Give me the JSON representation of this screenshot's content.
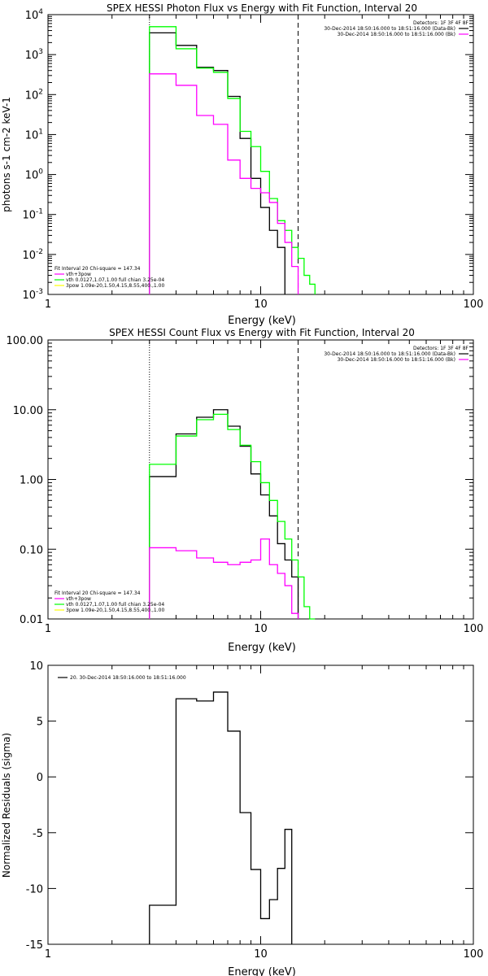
{
  "chart_data": [
    {
      "type": "line",
      "title": "SPEX HESSI Photon Flux vs Energy with Fit Function, Interval 20",
      "xlabel": "Energy (keV)",
      "ylabel": "photons s-1 cm-2 keV-1",
      "xscale": "log",
      "yscale": "log",
      "xlim": [
        1,
        100
      ],
      "ylim": [
        0.001,
        10000
      ],
      "xtick_labels": [
        "1",
        "10",
        "100"
      ],
      "ytick_labels": [
        "10-3",
        "10-2",
        "10-1",
        "100",
        "101",
        "102",
        "103",
        "104"
      ],
      "legend_top": {
        "header": "Detectors: 1F 3F 4F 8F",
        "entries": [
          {
            "label": "30-Dec-2014 18:50:16.000 to 18:51:16.000 (Data-Bk)",
            "color": "#000000"
          },
          {
            "label": "30-Dec-2014 18:50:16.000 to 18:51:16.000 (Bk)",
            "color": "#ff00ff"
          }
        ]
      },
      "legend_bottom": {
        "header": "Fit Interval 20   Chi-square = 147.34",
        "entries": [
          {
            "label": "vth+3pow",
            "color": "#ff00ff"
          },
          {
            "label": "vth 0.0127,1.07,1.00  full chian 3.25e-04",
            "color": "#00ff00"
          },
          {
            "label": "3pow 1.09e-20,1.50,4.15,8.55,400.,1.00",
            "color": "#ffff00"
          }
        ]
      },
      "fit_range_keV": [
        3,
        15
      ],
      "bin_edges": [
        3,
        4,
        5,
        6,
        7,
        8,
        9,
        10,
        11,
        12,
        13,
        14,
        15,
        16,
        17,
        18
      ],
      "series": [
        {
          "name": "Data-Bk",
          "color": "#000000",
          "values": [
            3500,
            1700,
            480,
            400,
            90,
            8,
            0.8,
            0.15,
            0.04,
            0.015,
            null,
            null,
            null,
            null,
            null
          ]
        },
        {
          "name": "vth+3pow",
          "color": "#00ff00",
          "values": [
            5000,
            1400,
            460,
            360,
            80,
            12,
            5,
            1.2,
            0.25,
            0.07,
            0.04,
            0.015,
            0.008,
            0.003,
            0.0018
          ]
        },
        {
          "name": "Bk",
          "color": "#ff00ff",
          "values": [
            330,
            170,
            30,
            18,
            2.3,
            0.8,
            0.45,
            0.35,
            0.2,
            0.06,
            0.02,
            0.005,
            null,
            null,
            null
          ]
        }
      ]
    },
    {
      "type": "line",
      "title": "SPEX HESSI Count Flux vs Energy with Fit Function, Interval 20",
      "xlabel": "Energy (keV)",
      "ylabel": "",
      "xscale": "log",
      "yscale": "log",
      "xlim": [
        1,
        100
      ],
      "ylim": [
        0.01,
        100
      ],
      "xtick_labels": [
        "1",
        "10",
        "100"
      ],
      "ytick_labels": [
        "0.01",
        "0.10",
        "1.00",
        "10.00",
        "100.00"
      ],
      "legend_top": {
        "header": "Detectors: 1F 3F 4F 8F",
        "entries": [
          {
            "label": "30-Dec-2014 18:50:16.000 to 18:51:16.000 (Data-Bk)",
            "color": "#000000"
          },
          {
            "label": "30-Dec-2014 18:50:16.000 to 18:51:16.000 (Bk)",
            "color": "#ff00ff"
          }
        ]
      },
      "legend_bottom": {
        "header": "Fit Interval 20   Chi-square = 147.34",
        "entries": [
          {
            "label": "vth+3pow",
            "color": "#ff00ff"
          },
          {
            "label": "vth 0.0127,1.07,1.00  full chian 3.25e-04",
            "color": "#00ff00"
          },
          {
            "label": "3pow 1.09e-20,1.50,4.15,8.55,400.,1.00",
            "color": "#ffff00"
          }
        ]
      },
      "fit_range_keV": [
        3,
        15
      ],
      "bin_edges": [
        3,
        4,
        5,
        6,
        7,
        8,
        9,
        10,
        11,
        12,
        13,
        14,
        15,
        16,
        17,
        18
      ],
      "series": [
        {
          "name": "Data-Bk",
          "color": "#000000",
          "values": [
            1.1,
            4.5,
            7.8,
            10,
            5.8,
            3,
            1.2,
            0.6,
            0.3,
            0.12,
            0.07,
            0.04,
            null,
            null,
            null
          ]
        },
        {
          "name": "vth+3pow",
          "color": "#00ff00",
          "values": [
            1.65,
            4.2,
            7.2,
            8.6,
            5.2,
            3.1,
            1.8,
            0.9,
            0.5,
            0.25,
            0.14,
            0.07,
            0.04,
            0.015,
            0.01
          ]
        },
        {
          "name": "Bk",
          "color": "#ff00ff",
          "values": [
            0.105,
            0.095,
            0.075,
            0.065,
            0.06,
            0.065,
            0.07,
            0.14,
            0.06,
            0.045,
            0.03,
            0.012,
            null,
            null,
            null
          ]
        }
      ]
    },
    {
      "type": "line",
      "title": "",
      "xlabel": "Energy (keV)",
      "ylabel": "Normalized Residuals (sigma)",
      "xscale": "log",
      "yscale": "linear",
      "xlim": [
        1,
        100
      ],
      "ylim": [
        -15,
        10
      ],
      "xtick_labels": [
        "1",
        "10",
        "100"
      ],
      "ytick_labels": [
        "-15",
        "-10",
        "-5",
        "0",
        "5",
        "10"
      ],
      "legend": [
        {
          "label": "20. 30-Dec-2014 18:50:16.000 to 18:51:16.000",
          "color": "#000000"
        }
      ],
      "bin_edges": [
        3,
        4,
        5,
        6,
        7,
        8,
        9,
        10,
        11,
        12,
        13,
        14,
        15
      ],
      "series": [
        {
          "name": "",
          "color": "#000000",
          "values": [
            -11.5,
            7.0,
            6.8,
            7.6,
            4.1,
            -3.2,
            -8.3,
            -12.7,
            -11.0,
            -8.2,
            -4.7,
            null
          ]
        }
      ]
    }
  ]
}
